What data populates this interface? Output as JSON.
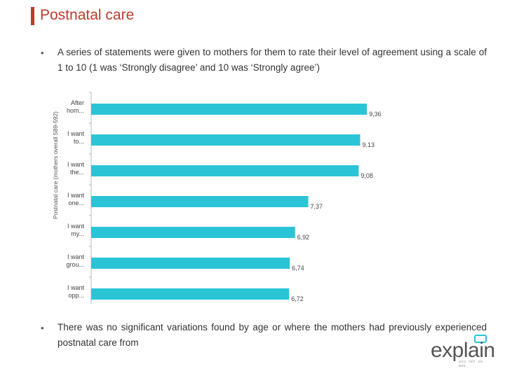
{
  "title": "Postnatal care",
  "bullets": [
    "A series of statements were given to mothers for them to rate their level of agreement using a scale of 1 to 10 (1 was ‘Strongly disagree’ and 10 was ‘Strongly agree’)",
    "There was no significant variations found by age or where the mothers had previously experienced postnatal care from"
  ],
  "bullet_symbol": "•",
  "chart_data": {
    "type": "bar",
    "orientation": "horizontal",
    "ylabel": "Postnatal care (mothers overall 589-592)",
    "categories": [
      [
        "After",
        "hom..."
      ],
      [
        "I want",
        "to..."
      ],
      [
        "I want",
        "the..."
      ],
      [
        "I want",
        "one..."
      ],
      [
        "I want",
        "my..."
      ],
      [
        "I want",
        "grou..."
      ],
      [
        "I want",
        "opp..."
      ]
    ],
    "values": [
      9.36,
      9.13,
      9.08,
      7.37,
      6.92,
      6.74,
      6.72
    ],
    "value_labels": [
      "9,36",
      "9,13",
      "9,08",
      "7,37",
      "6,92",
      "6,74",
      "6,72"
    ],
    "xlim": [
      0,
      10
    ],
    "bar_color": "#2bc4d6",
    "grid": false
  },
  "logo": {
    "word": "explain",
    "tagline": "you. tell. us. ask."
  }
}
